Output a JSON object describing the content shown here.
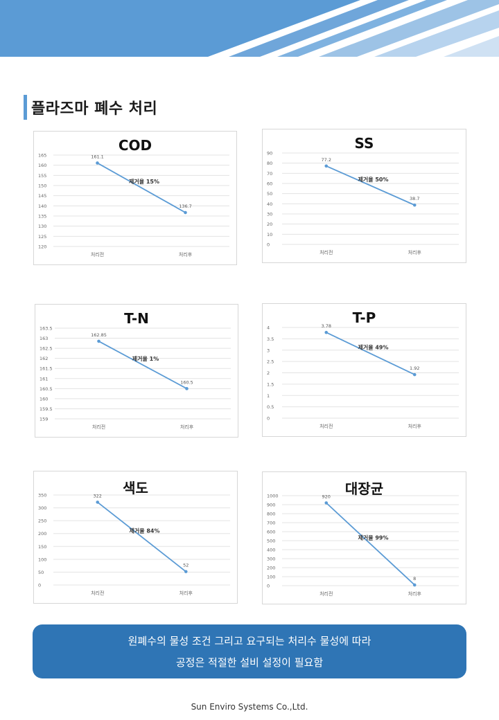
{
  "section_title": "플라즈마 폐수 처리",
  "footer": {
    "line1": "원폐수의 물성 조건 그리고 요구되는 처리수 물성에 따라",
    "line2": "공정은 적절한 설비 설정이 필요함"
  },
  "company": "Sun Enviro Systems Co.,Ltd.",
  "colors": {
    "line": "#5b9bd5",
    "footer_bg": "#2f75b5",
    "banner_dark": "#5b9bd5",
    "banner_light": "#9dc3e6"
  },
  "chart_data": [
    {
      "type": "line",
      "title": "COD",
      "categories": [
        "처리전",
        "처리후"
      ],
      "values": [
        161.1,
        136.7
      ],
      "value_labels": [
        "161.1",
        "136.7"
      ],
      "annotation": "제거율 15%",
      "yticks": [
        "165",
        "160",
        "155",
        "150",
        "145",
        "140",
        "135",
        "130",
        "125",
        "120"
      ],
      "ylim": [
        120,
        165
      ],
      "grid": true
    },
    {
      "type": "line",
      "title": "SS",
      "categories": [
        "처리전",
        "처리후"
      ],
      "values": [
        77.2,
        38.7
      ],
      "value_labels": [
        "77.2",
        "38.7"
      ],
      "annotation": "제거율 50%",
      "yticks": [
        "90",
        "80",
        "70",
        "60",
        "50",
        "40",
        "30",
        "20",
        "10",
        "0"
      ],
      "ylim": [
        0,
        90
      ],
      "grid": true
    },
    {
      "type": "line",
      "title": "T-N",
      "categories": [
        "처리전",
        "처리후"
      ],
      "values": [
        162.85,
        160.5
      ],
      "value_labels": [
        "162.85",
        "160.5"
      ],
      "annotation": "제거율 1%",
      "yticks": [
        "163.5",
        "163",
        "162.5",
        "162",
        "161.5",
        "161",
        "160.5",
        "160",
        "159.5",
        "159"
      ],
      "ylim": [
        159,
        163.5
      ],
      "grid": true
    },
    {
      "type": "line",
      "title": "T-P",
      "categories": [
        "처리전",
        "처리후"
      ],
      "values": [
        3.78,
        1.92
      ],
      "value_labels": [
        "3.78",
        "1.92"
      ],
      "annotation": "제거율 49%",
      "yticks": [
        "4",
        "3.5",
        "3",
        "2.5",
        "2",
        "1.5",
        "1",
        "0.5",
        "0"
      ],
      "ylim": [
        0,
        4
      ],
      "grid": true
    },
    {
      "type": "line",
      "title": "색도",
      "categories": [
        "처리전",
        "처리후"
      ],
      "values": [
        322,
        52
      ],
      "value_labels": [
        "322",
        "52"
      ],
      "annotation": "제거율 84%",
      "yticks": [
        "350",
        "300",
        "250",
        "200",
        "150",
        "100",
        "50",
        "0"
      ],
      "ylim": [
        0,
        350
      ],
      "grid": true
    },
    {
      "type": "line",
      "title": "대장균",
      "categories": [
        "처리전",
        "처리후"
      ],
      "values": [
        920,
        8
      ],
      "value_labels": [
        "920",
        "8"
      ],
      "annotation": "제거율 99%",
      "yticks": [
        "1000",
        "900",
        "800",
        "700",
        "600",
        "500",
        "400",
        "300",
        "200",
        "100",
        "0"
      ],
      "ylim": [
        0,
        1000
      ],
      "grid": true
    }
  ]
}
